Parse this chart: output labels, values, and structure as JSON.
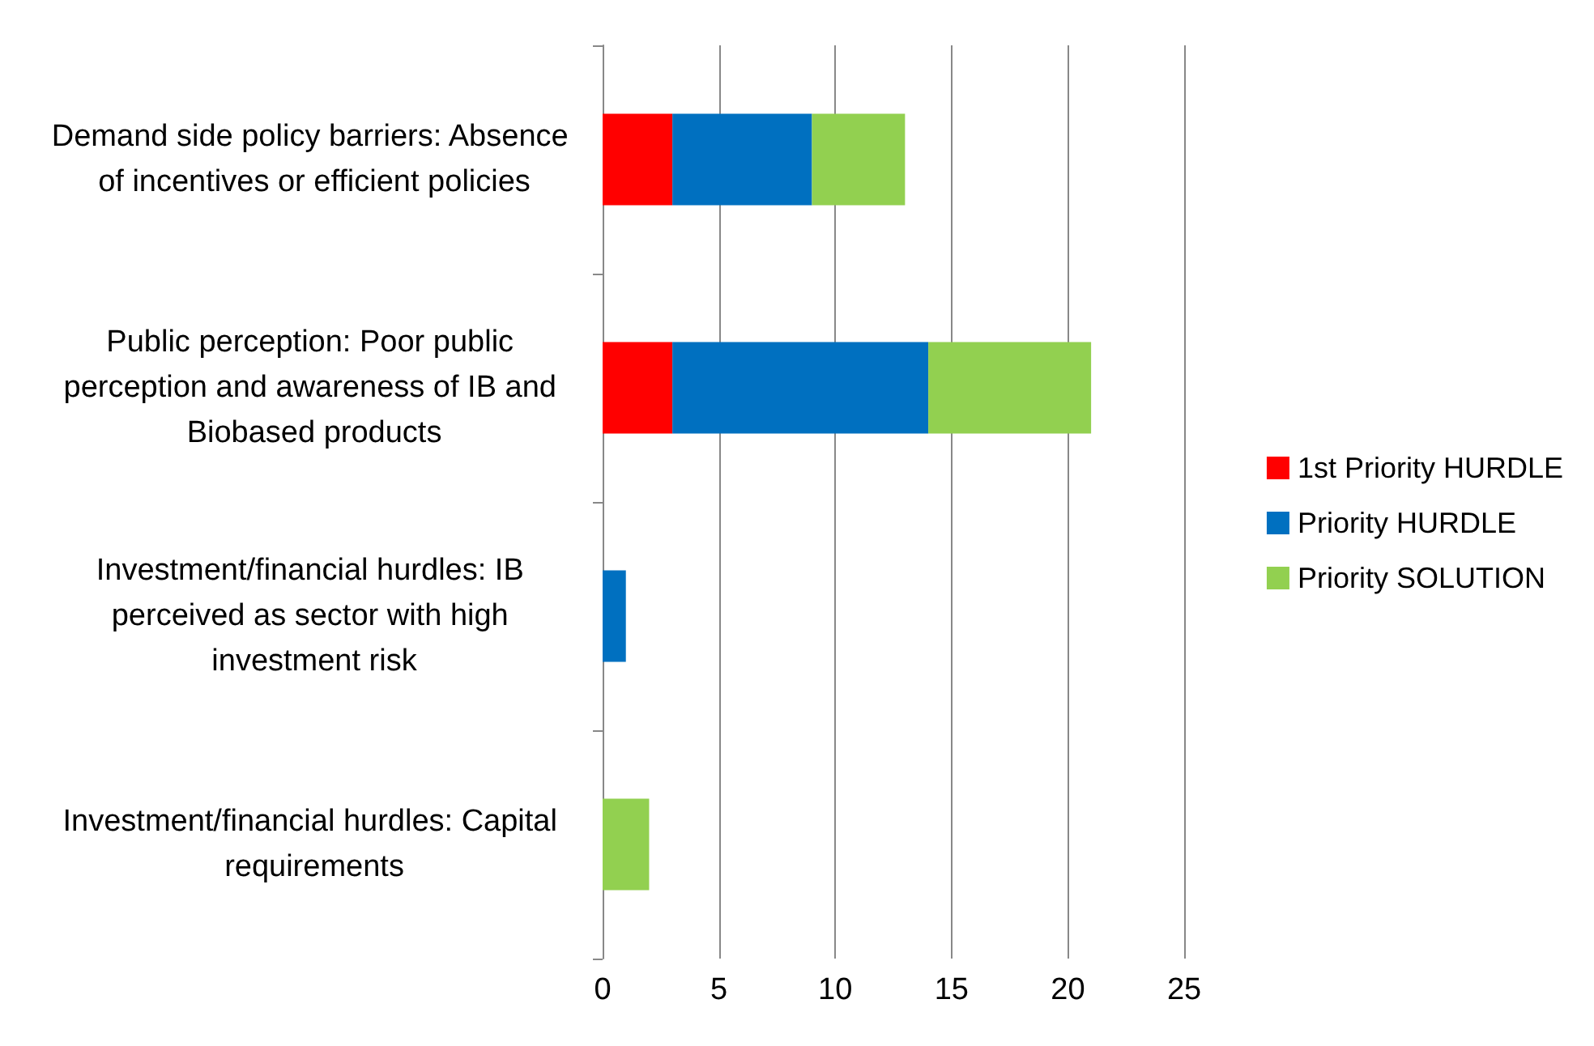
{
  "chart_data": {
    "type": "bar",
    "orientation": "horizontal",
    "stacked": true,
    "categories": [
      "Demand side policy barriers: Absence of incentives or efficient policies",
      "Public perception: Poor public perception and awareness of IB and Biobased products",
      "Investment/financial hurdles: IB perceived as sector with high investment risk",
      "Investment/financial hurdles: Capital requirements"
    ],
    "series": [
      {
        "name": "1st Priority HURDLE",
        "color": "#ff0000",
        "values": [
          3,
          3,
          null,
          null
        ]
      },
      {
        "name": "Priority HURDLE",
        "color": "#0070c0",
        "values": [
          6,
          11,
          1,
          null
        ]
      },
      {
        "name": "Priority SOLUTION",
        "color": "#92d050",
        "values": [
          4,
          7,
          null,
          2
        ]
      }
    ],
    "xlim": [
      0,
      25
    ],
    "xticks": [
      0,
      5,
      10,
      15,
      20,
      25
    ],
    "grid": "x",
    "legend": "right"
  }
}
